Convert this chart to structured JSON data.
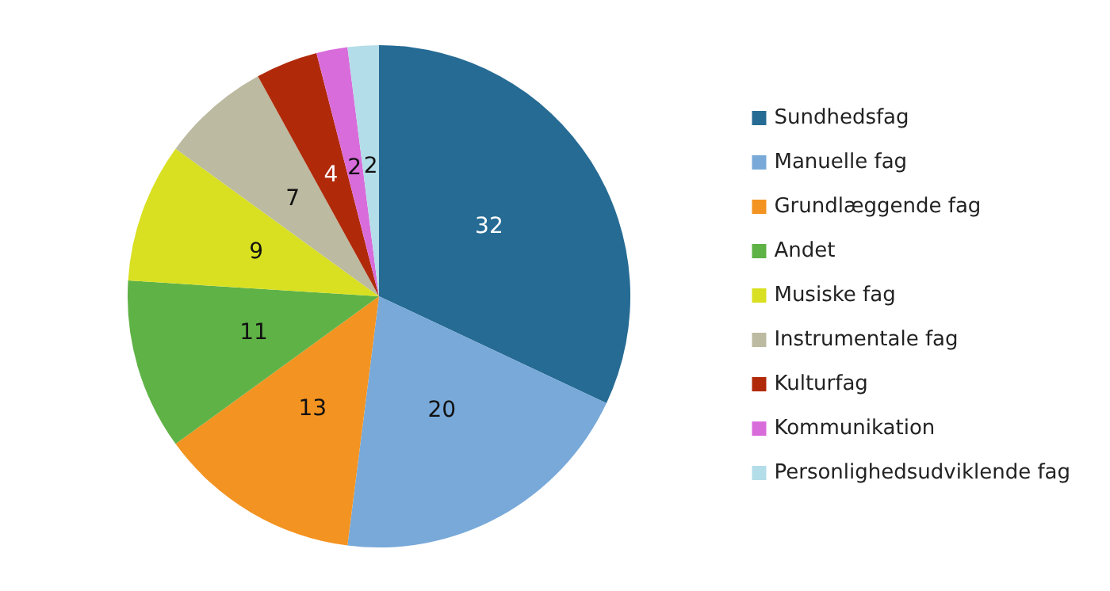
{
  "chart_data": {
    "type": "pie",
    "categories": [
      "Sundhedsfag",
      "Manuelle fag",
      "Grundlæggende fag",
      "Andet",
      "Musiske fag",
      "Instrumentale fag",
      "Kulturfag",
      "Kommunikation",
      "Personlighedsudviklende fag"
    ],
    "values": [
      32,
      20,
      13,
      11,
      9,
      7,
      4,
      2,
      2
    ],
    "colors": [
      "#266b94",
      "#78a9d9",
      "#f39321",
      "#5fb246",
      "#d8e021",
      "#bcbaa0",
      "#b02a0a",
      "#d96cdb",
      "#b3dde8"
    ],
    "data_labels": true,
    "legend": "right"
  }
}
